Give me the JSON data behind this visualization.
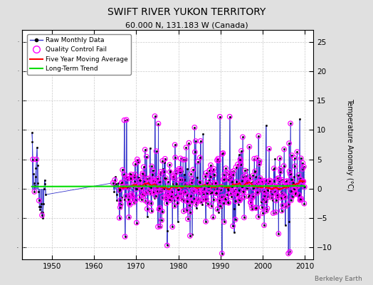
{
  "title": "SWIFT RIVER YUKON TERRITORY",
  "subtitle": "60.000 N, 131.183 W (Canada)",
  "ylabel": "Temperature Anomaly (°C)",
  "watermark": "Berkeley Earth",
  "ylim": [
    -12,
    27
  ],
  "yticks": [
    -10,
    -5,
    0,
    5,
    10,
    15,
    20,
    25
  ],
  "xlim": [
    1943,
    2012
  ],
  "xticks": [
    1950,
    1960,
    1970,
    1980,
    1990,
    2000,
    2010
  ],
  "bg_color": "#e0e0e0",
  "plot_bg_color": "#ffffff",
  "seed": 12345,
  "years_start": 1945.25,
  "years_end": 2010.0,
  "early_end": 1948.5,
  "gap_end": 1965.5,
  "early_n": 28,
  "main_gap_start": 1948.5,
  "second_cluster_start": 1964.5,
  "second_cluster_end": 1966.0,
  "second_n": 12
}
